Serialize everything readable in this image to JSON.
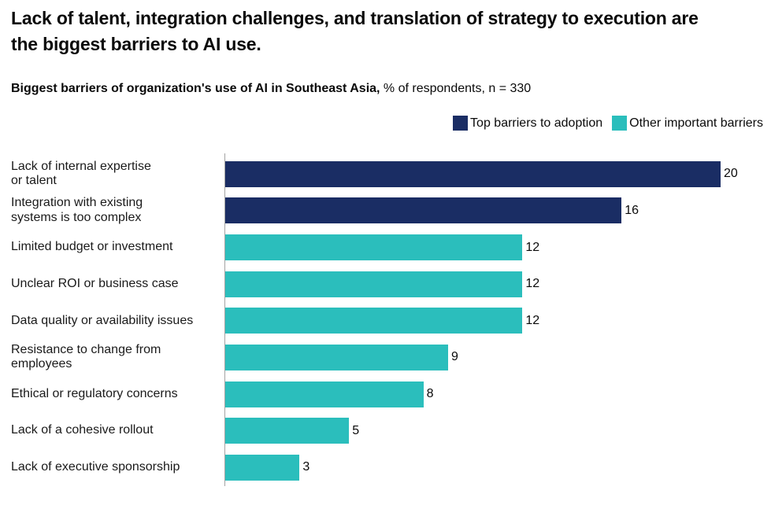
{
  "header": {
    "title": "Lack of talent, integration challenges, and translation of strategy to execution are the biggest barriers to AI use.",
    "subtitle_bold": "Biggest barriers of organization's use of AI in Southeast Asia,",
    "subtitle_detail": " % of respondents, n = 330"
  },
  "colors": {
    "top_barriers": "#1A2D64",
    "other_barriers": "#2BBEBC",
    "axis": "#A3A3A3"
  },
  "legend": {
    "items": [
      {
        "label": "Top barriers to adoption",
        "group": "top_barriers"
      },
      {
        "label": "Other important barriers",
        "group": "other_barriers"
      }
    ]
  },
  "chart_data": {
    "type": "bar",
    "orientation": "horizontal",
    "title": "Biggest barriers of organization's use of AI in Southeast Asia",
    "unit": "% of respondents",
    "sample_note": "n = 330",
    "x_max": 20,
    "grid": false,
    "legend_position": "top-right",
    "series": [
      {
        "name": "Top barriers to adoption",
        "color": "#1A2D64"
      },
      {
        "name": "Other important barriers",
        "color": "#2BBEBC"
      }
    ],
    "bars": [
      {
        "category": "Lack of internal expertise or talent",
        "label_lines": [
          "Lack of internal expertise",
          "or talent"
        ],
        "value": 20,
        "group": "top_barriers"
      },
      {
        "category": "Integration with existing systems is too complex",
        "label_lines": [
          "Integration with existing",
          "systems is too complex"
        ],
        "value": 16,
        "group": "top_barriers"
      },
      {
        "category": "Limited budget or investment",
        "label_lines": [
          "Limited budget or investment"
        ],
        "value": 12,
        "group": "other_barriers"
      },
      {
        "category": "Unclear ROI or business case",
        "label_lines": [
          "Unclear ROI or business case"
        ],
        "value": 12,
        "group": "other_barriers"
      },
      {
        "category": "Data quality or availability issues",
        "label_lines": [
          "Data quality or availability issues"
        ],
        "value": 12,
        "group": "other_barriers"
      },
      {
        "category": "Resistance to change from employees",
        "label_lines": [
          "Resistance to change from",
          "employees"
        ],
        "value": 9,
        "group": "other_barriers"
      },
      {
        "category": "Ethical or regulatory concerns",
        "label_lines": [
          "Ethical or regulatory concerns"
        ],
        "value": 8,
        "group": "other_barriers"
      },
      {
        "category": "Lack of a cohesive rollout",
        "label_lines": [
          "Lack of a cohesive rollout"
        ],
        "value": 5,
        "group": "other_barriers"
      },
      {
        "category": "Lack of executive sponsorship",
        "label_lines": [
          "Lack of executive sponsorship"
        ],
        "value": 3,
        "group": "other_barriers"
      }
    ]
  }
}
